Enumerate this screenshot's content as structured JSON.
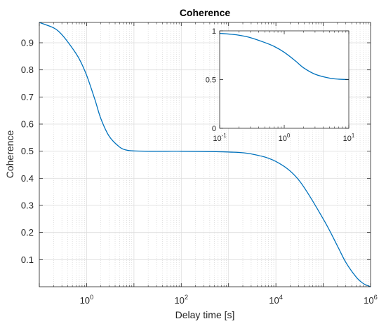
{
  "chart_data": [
    {
      "type": "line",
      "title": "Coherence",
      "xlabel": "Delay time [s]",
      "ylabel": "Coherence",
      "xscale": "log",
      "xlim": [
        0.1,
        1000000
      ],
      "ylim": [
        0,
        0.975
      ],
      "xtick_labels": [
        {
          "base": "10",
          "exp": "0",
          "value": 1
        },
        {
          "base": "10",
          "exp": "2",
          "value": 100
        },
        {
          "base": "10",
          "exp": "4",
          "value": 10000
        },
        {
          "base": "10",
          "exp": "6",
          "value": 1000000
        }
      ],
      "ytick_labels": [
        "0.1",
        "0.2",
        "0.3",
        "0.4",
        "0.5",
        "0.6",
        "0.7",
        "0.8",
        "0.9"
      ],
      "yticks": [
        0.1,
        0.2,
        0.3,
        0.4,
        0.5,
        0.6,
        0.7,
        0.8,
        0.9
      ],
      "grid": true,
      "minor_grid": true,
      "series": [
        {
          "color": "#0072BD",
          "x": [
            0.1,
            0.2,
            0.3,
            0.5,
            0.7,
            1,
            1.5,
            2,
            3,
            5,
            7,
            10,
            20,
            50,
            100,
            300,
            1000,
            3000,
            10000,
            30000,
            100000,
            200000,
            300000,
            500000,
            700000,
            1000000
          ],
          "y": [
            0.975,
            0.955,
            0.93,
            0.88,
            0.84,
            0.78,
            0.69,
            0.62,
            0.555,
            0.515,
            0.504,
            0.501,
            0.5,
            0.5,
            0.5,
            0.499,
            0.497,
            0.49,
            0.462,
            0.395,
            0.25,
            0.15,
            0.09,
            0.035,
            0.012,
            0.0
          ]
        }
      ]
    },
    {
      "type": "line",
      "title": "",
      "xscale": "log",
      "xlim": [
        0.1,
        10
      ],
      "ylim": [
        0,
        1
      ],
      "xtick_labels": [
        {
          "base": "10",
          "exp": "-1",
          "value": 0.1
        },
        {
          "base": "10",
          "exp": "0",
          "value": 1
        },
        {
          "base": "10",
          "exp": "1",
          "value": 10
        }
      ],
      "ytick_labels": [
        "0",
        "0.5",
        "1"
      ],
      "yticks": [
        0,
        0.5,
        1
      ],
      "grid": false,
      "series": [
        {
          "color": "#0072BD",
          "x": [
            0.1,
            0.15,
            0.2,
            0.3,
            0.5,
            0.7,
            1,
            1.5,
            2,
            3,
            5,
            7,
            10
          ],
          "y": [
            0.975,
            0.965,
            0.955,
            0.93,
            0.88,
            0.84,
            0.78,
            0.69,
            0.62,
            0.555,
            0.515,
            0.504,
            0.5
          ]
        }
      ]
    }
  ]
}
